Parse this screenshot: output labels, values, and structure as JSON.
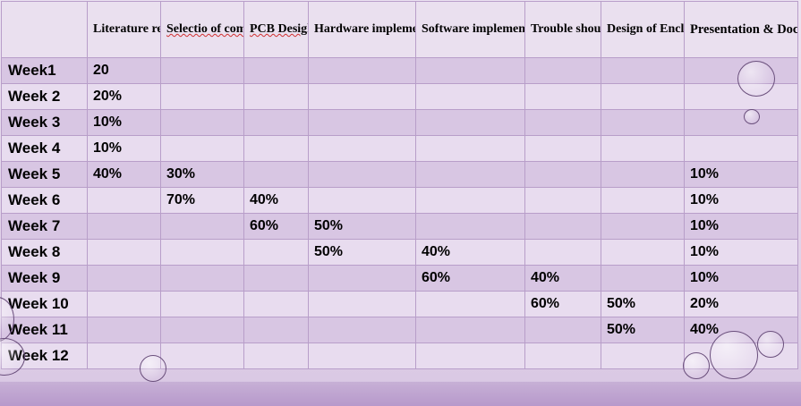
{
  "table": {
    "headers": [
      "",
      "Literature review",
      "Selectio of component",
      "PCB Desigh",
      "Hardware implementation",
      "Software implementation",
      "Trouble shouting",
      "Design of Enclosure",
      "Presentation & Documentation"
    ],
    "rows": [
      [
        "Week1",
        "20",
        "",
        "",
        "",
        "",
        "",
        "",
        ""
      ],
      [
        "Week 2",
        "20%",
        "",
        "",
        "",
        "",
        "",
        "",
        ""
      ],
      [
        "Week 3",
        "10%",
        "",
        "",
        "",
        "",
        "",
        "",
        ""
      ],
      [
        "Week 4",
        "10%",
        "",
        "",
        "",
        "",
        "",
        "",
        ""
      ],
      [
        "Week 5",
        "40%",
        "30%",
        "",
        "",
        "",
        "",
        "",
        "10%"
      ],
      [
        "Week 6",
        "",
        "70%",
        "40%",
        "",
        "",
        "",
        "",
        "10%"
      ],
      [
        "Week 7",
        "",
        "",
        "60%",
        "50%",
        "",
        "",
        "",
        "10%"
      ],
      [
        "Week 8",
        "",
        "",
        "",
        "50%",
        "40%",
        "",
        "",
        "10%"
      ],
      [
        "Week 9",
        "",
        "",
        "",
        "",
        "60%",
        "40%",
        "",
        "10%"
      ],
      [
        "Week 10",
        "",
        "",
        "",
        "",
        "",
        "60%",
        "50%",
        "20%"
      ],
      [
        "Week 11",
        "",
        "",
        "",
        "",
        "",
        "",
        "50%",
        "40%"
      ],
      [
        "Week 12",
        "",
        "",
        "",
        "",
        "",
        "",
        "",
        ""
      ]
    ]
  },
  "colors": {
    "background": "#e6daed",
    "row_dark": "#d8c6e3",
    "row_light": "#e8dcef",
    "grid_line": "#b89ec9",
    "footer_band": "#b799cb"
  }
}
